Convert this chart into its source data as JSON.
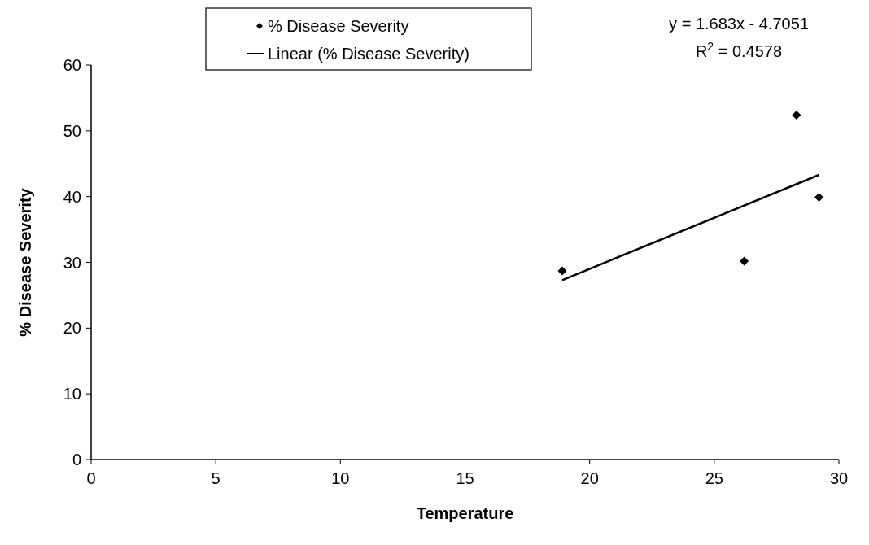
{
  "chart_data": {
    "type": "scatter",
    "xlabel": "Temperature",
    "ylabel": "% Disease Severity",
    "xlim": [
      0,
      30
    ],
    "xticks": [
      0,
      5,
      10,
      15,
      20,
      25,
      30
    ],
    "ylim": [
      0,
      60
    ],
    "yticks": [
      0,
      10,
      20,
      30,
      40,
      50,
      60
    ],
    "grid": false,
    "legend": "top",
    "marker": "diamond",
    "series": [
      {
        "name": "% Disease Severity",
        "color": "#000000",
        "x": [
          18.9,
          26.2,
          28.3,
          29.2
        ],
        "values": [
          28.7,
          30.2,
          52.4,
          39.9
        ]
      },
      {
        "name": "Linear (% Disease Severity)",
        "color": "#000000",
        "type": "line",
        "marker": "none",
        "x": [
          18.9,
          29.2
        ],
        "values": [
          27.3,
          43.3
        ]
      }
    ],
    "annotations": [
      "y = 1.683x - 4.7051",
      "R$^{2}$ = 0.4578"
    ]
  }
}
